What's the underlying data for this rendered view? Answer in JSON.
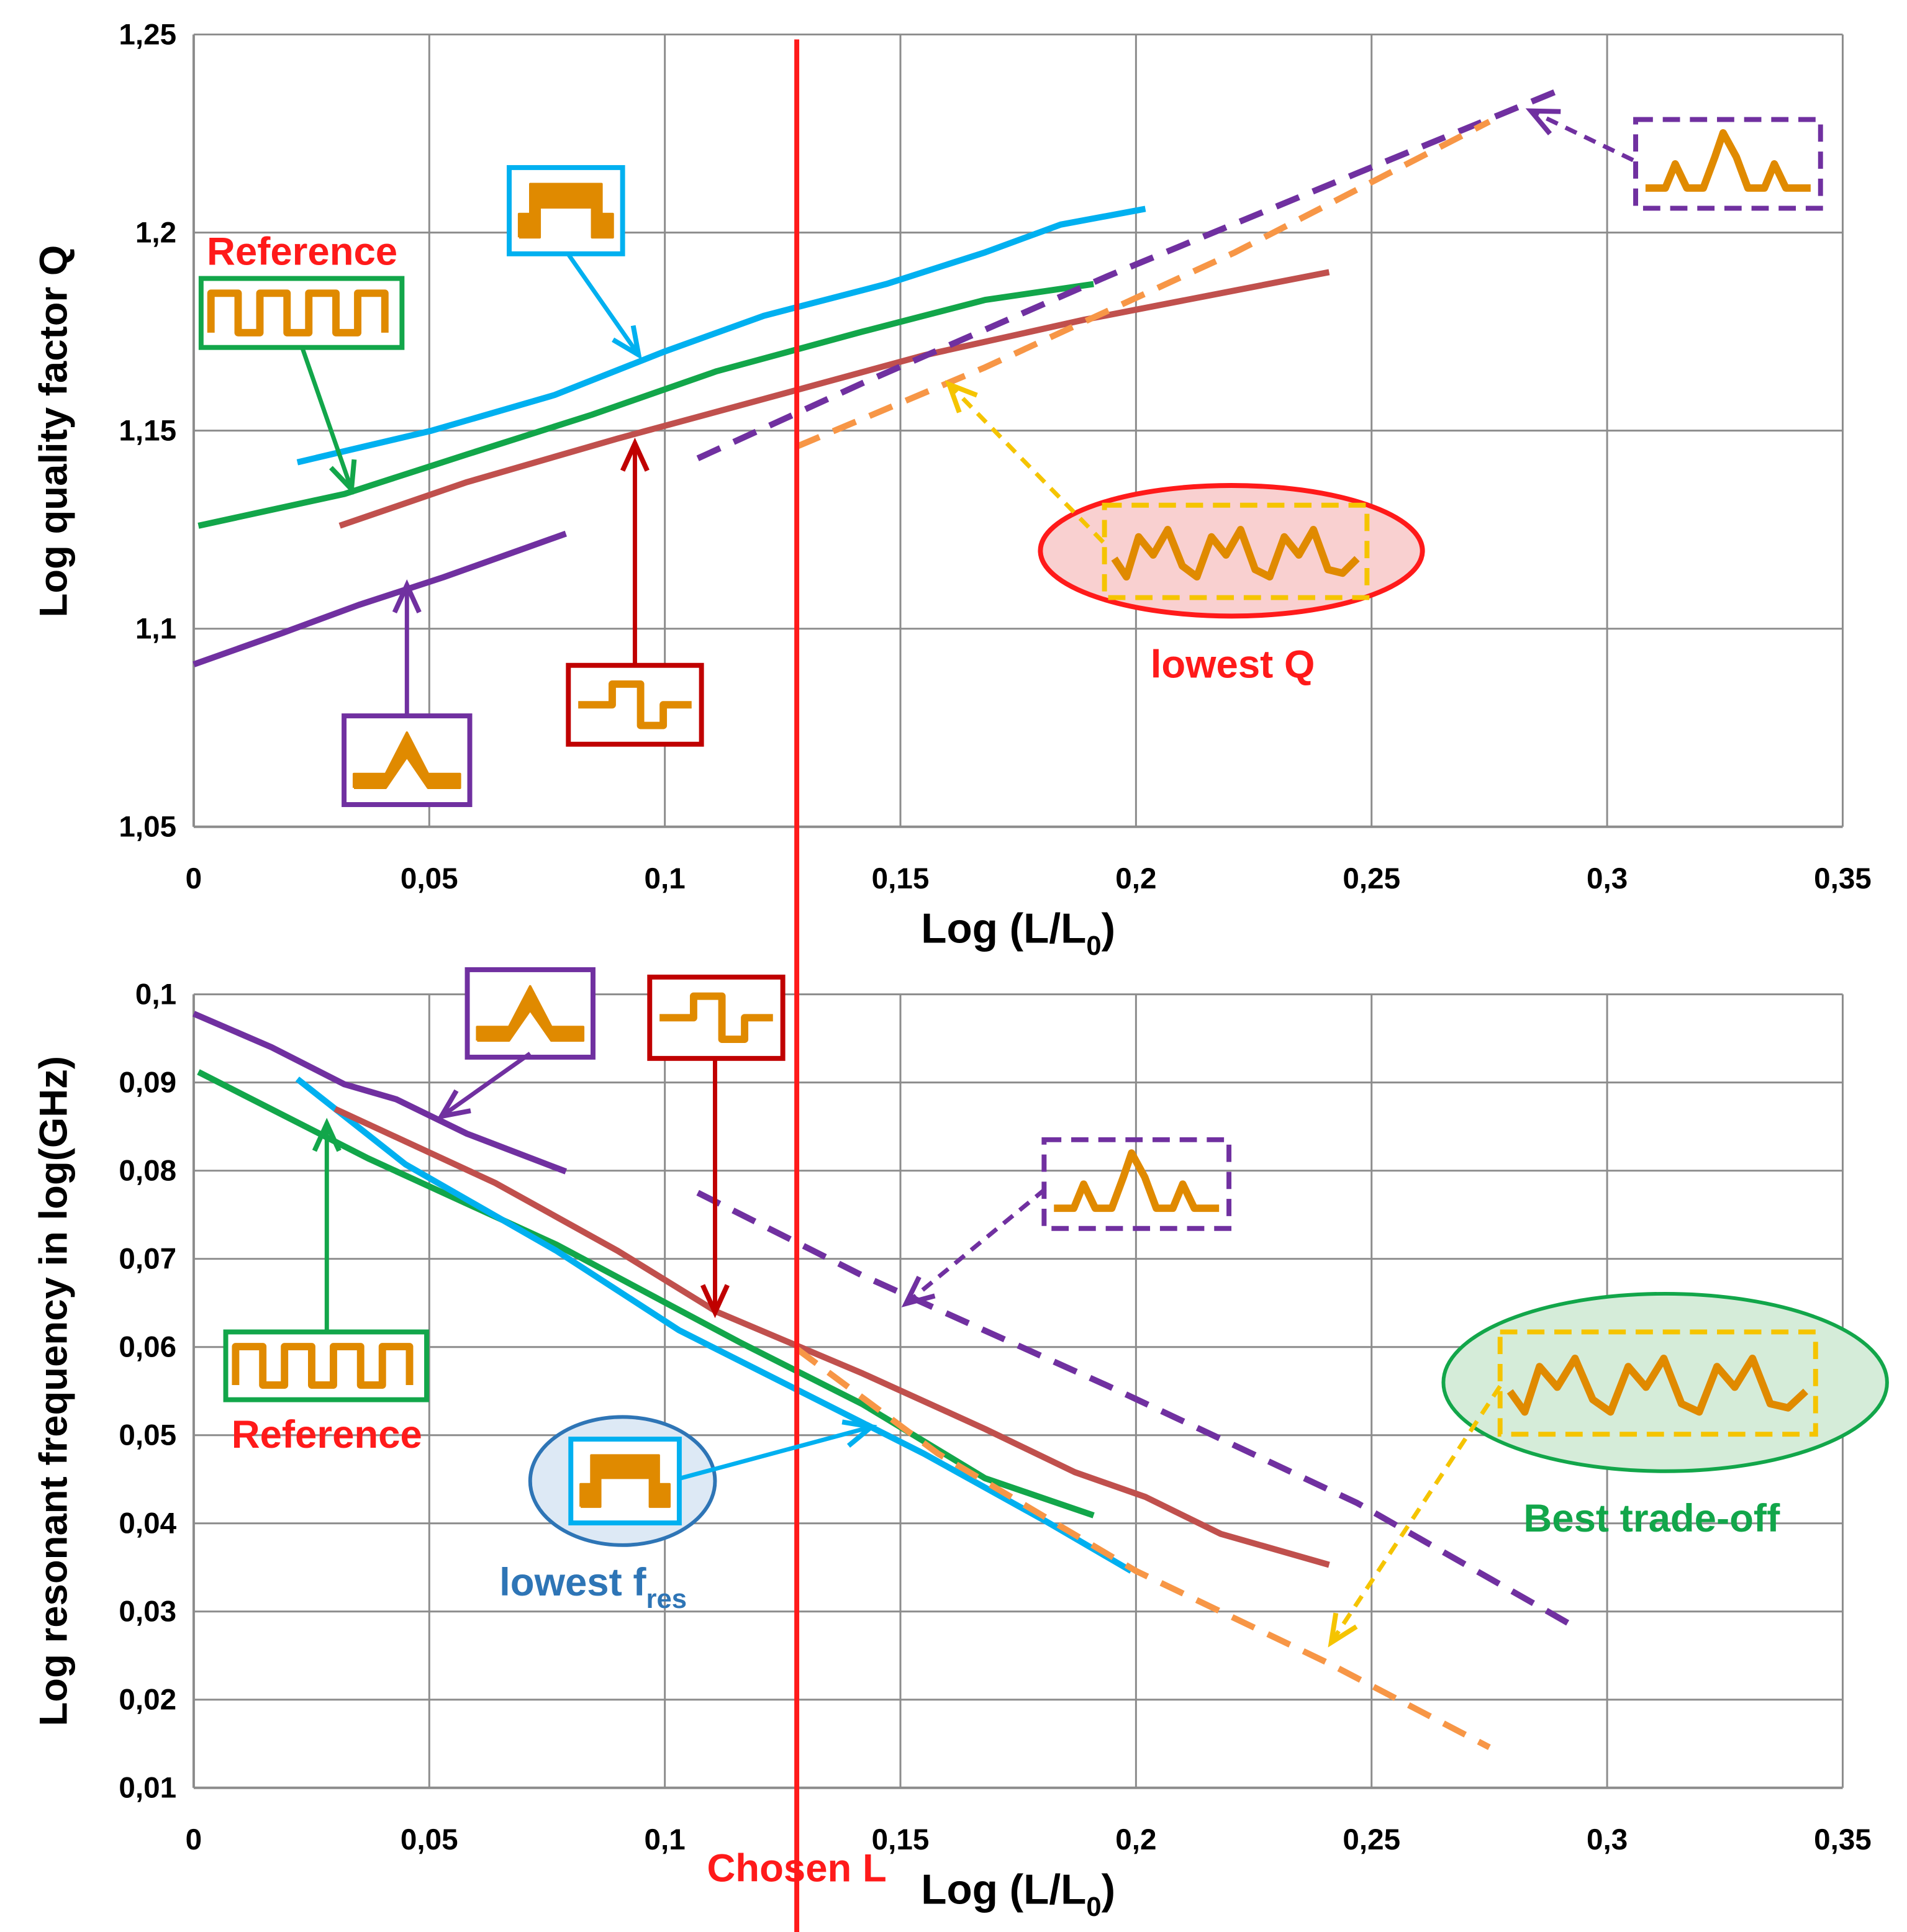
{
  "chosen_line": {
    "x": 0.128,
    "label": "Chosen L"
  },
  "chart_data": [
    {
      "type": "line",
      "y_label": "Log quality factor Q",
      "x_label": {
        "text": "Log (L/L",
        "subscript": "0",
        "suffix": ")"
      },
      "xlim": [
        0,
        0.35
      ],
      "xticks": [
        0,
        {
          "value": 0.05,
          "label": "0,05"
        },
        {
          "value": 0.1,
          "label": "0,1"
        },
        {
          "value": 0.15,
          "label": "0,15"
        },
        {
          "value": 0.2,
          "label": "0,2"
        },
        {
          "value": 0.25,
          "label": "0,25"
        },
        {
          "value": 0.3,
          "label": "0,3"
        },
        {
          "value": 0.35,
          "label": "0,35"
        }
      ],
      "ylim": [
        1.05,
        1.25
      ],
      "yticks": [
        {
          "value": 1.05,
          "label": "1,05"
        },
        {
          "value": 1.1,
          "label": "1,1"
        },
        {
          "value": 1.15,
          "label": "1,15"
        },
        {
          "value": 1.2,
          "label": "1,2"
        },
        {
          "value": 1.25,
          "label": "1,25"
        }
      ],
      "grid": true,
      "annotations": [
        "Reference",
        "lowest Q"
      ],
      "series": [
        {
          "color": "#00b0f0",
          "dashed": false,
          "x": [
            0.022,
            0.0505,
            0.0766,
            0.1,
            0.121,
            0.147,
            0.168,
            0.184,
            0.202
          ],
          "values": [
            1.142,
            1.15,
            1.159,
            1.17,
            1.179,
            1.187,
            1.195,
            1.202,
            1.206
          ]
        },
        {
          "color": "#12a64a",
          "dashed": false,
          "x": [
            0.001,
            0.032,
            0.058,
            0.0845,
            0.111,
            0.142,
            0.168,
            0.191
          ],
          "values": [
            1.126,
            1.134,
            1.144,
            1.154,
            1.165,
            1.175,
            1.183,
            1.187
          ]
        },
        {
          "color": "#c0504d",
          "dashed": false,
          "x": [
            0.031,
            0.058,
            0.09,
            0.121,
            0.155,
            0.189,
            0.215,
            0.241
          ],
          "values": [
            1.126,
            1.137,
            1.148,
            1.158,
            1.169,
            1.178,
            1.184,
            1.19
          ]
        },
        {
          "color": "#7030a0",
          "dashed": false,
          "x": [
            0,
            0.019,
            0.035,
            0.053,
            0.079
          ],
          "values": [
            1.091,
            1.099,
            1.106,
            1.113,
            1.124
          ]
        },
        {
          "color": "#7030a0",
          "dashed": true,
          "x": [
            0.107,
            0.142,
            0.194,
            0.247,
            0.29
          ],
          "values": [
            1.143,
            1.162,
            1.189,
            1.215,
            1.236
          ]
        },
        {
          "color": "#f79646",
          "dashed": true,
          "x": [
            0.128,
            0.168,
            0.221,
            0.275
          ],
          "values": [
            1.146,
            1.166,
            1.195,
            1.228
          ]
        }
      ]
    },
    {
      "type": "line",
      "y_label": "Log resonant frequency in log(GHz)",
      "x_label": {
        "text": "Log (L/L",
        "subscript": "0",
        "suffix": ")"
      },
      "xlim": [
        0,
        0.35
      ],
      "xticks": [
        0,
        {
          "value": 0.05,
          "label": "0,05"
        },
        {
          "value": 0.1,
          "label": "0,1"
        },
        {
          "value": 0.15,
          "label": "0,15"
        },
        {
          "value": 0.2,
          "label": "0,2"
        },
        {
          "value": 0.25,
          "label": "0,25"
        },
        {
          "value": 0.3,
          "label": "0,3"
        },
        {
          "value": 0.35,
          "label": "0,35"
        }
      ],
      "ylim": [
        0.01,
        0.1
      ],
      "yticks": [
        {
          "value": 0.01,
          "label": "0,01"
        },
        {
          "value": 0.02,
          "label": "0,02"
        },
        {
          "value": 0.03,
          "label": "0,03"
        },
        {
          "value": 0.04,
          "label": "0,04"
        },
        {
          "value": 0.05,
          "label": "0,05"
        },
        {
          "value": 0.06,
          "label": "0,06"
        },
        {
          "value": 0.07,
          "label": "0,07"
        },
        {
          "value": 0.08,
          "label": "0,08"
        },
        {
          "value": 0.09,
          "label": "0,09"
        },
        {
          "value": 0.1,
          "label": "0,1"
        }
      ],
      "grid": true,
      "annotations": [
        "Reference",
        "Best trade-off"
      ],
      "fres_label": {
        "text": "lowest f",
        "subscript": "res"
      },
      "series": [
        {
          "color": "#7030a0",
          "dashed": false,
          "x": [
            0,
            0.0165,
            0.032,
            0.043,
            0.058,
            0.079
          ],
          "values": [
            0.0978,
            0.094,
            0.0898,
            0.0881,
            0.0842,
            0.0799
          ]
        },
        {
          "color": "#12a64a",
          "dashed": false,
          "x": [
            0.001,
            0.037,
            0.077,
            0.116,
            0.142,
            0.168,
            0.191
          ],
          "values": [
            0.0912,
            0.0814,
            0.0716,
            0.0605,
            0.0535,
            0.0451,
            0.0409
          ]
        },
        {
          "color": "#00b0f0",
          "dashed": false,
          "x": [
            0.022,
            0.045,
            0.077,
            0.103,
            0.129,
            0.155,
            0.181,
            0.199
          ],
          "values": [
            0.0904,
            0.0807,
            0.0709,
            0.0619,
            0.0549,
            0.0479,
            0.0402,
            0.0346
          ]
        },
        {
          "color": "#c0504d",
          "dashed": false,
          "x": [
            0.03,
            0.064,
            0.09,
            0.111,
            0.142,
            0.168,
            0.187,
            0.202,
            0.218,
            0.241
          ],
          "values": [
            0.087,
            0.0786,
            0.0709,
            0.064,
            0.057,
            0.0507,
            0.0458,
            0.043,
            0.0388,
            0.0353
          ]
        },
        {
          "color": "#7030a0",
          "dashed": true,
          "x": [
            0.107,
            0.142,
            0.194,
            0.247,
            0.292
          ],
          "values": [
            0.0775,
            0.0681,
            0.0556,
            0.0423,
            0.0286
          ]
        },
        {
          "color": "#f79646",
          "dashed": true,
          "x": [
            0.128,
            0.158,
            0.2,
            0.241,
            0.275
          ],
          "values": [
            0.0598,
            0.0479,
            0.0346,
            0.0241,
            0.0146
          ]
        }
      ]
    }
  ]
}
